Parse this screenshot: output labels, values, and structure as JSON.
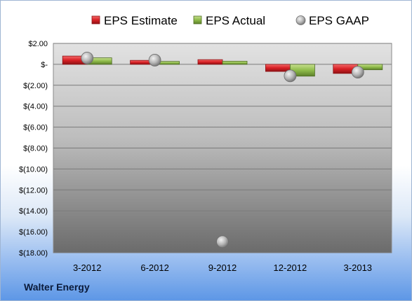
{
  "company_label": "Walter Energy",
  "chart_data": {
    "type": "bar",
    "categories": [
      "3-2012",
      "6-2012",
      "9-2012",
      "12-2012",
      "3-2013"
    ],
    "series": [
      {
        "name": "EPS Estimate",
        "kind": "bar",
        "color": "#d9262a",
        "values": [
          0.79,
          0.38,
          0.45,
          -0.68,
          -0.87
        ]
      },
      {
        "name": "EPS Actual",
        "kind": "bar",
        "color": "#8fbc4a",
        "values": [
          0.62,
          0.28,
          0.3,
          -1.13,
          -0.52
        ]
      },
      {
        "name": "EPS GAAP",
        "kind": "marker",
        "color": "#b8b8b8",
        "values": [
          0.6,
          0.4,
          -16.95,
          -1.1,
          -0.75
        ]
      }
    ],
    "yticks": [
      2,
      0,
      -2,
      -4,
      -6,
      -8,
      -10,
      -12,
      -14,
      -16,
      -18
    ],
    "ytick_labels": [
      "$2.00",
      "$-",
      "$(2.00)",
      "$(4.00)",
      "$(6.00)",
      "$(8.00)",
      "$(10.00)",
      "$(12.00)",
      "$(14.00)",
      "$(16.00)",
      "$(18.00)"
    ],
    "ylim": [
      -18,
      2
    ],
    "grid": true,
    "legend_position": "top"
  }
}
